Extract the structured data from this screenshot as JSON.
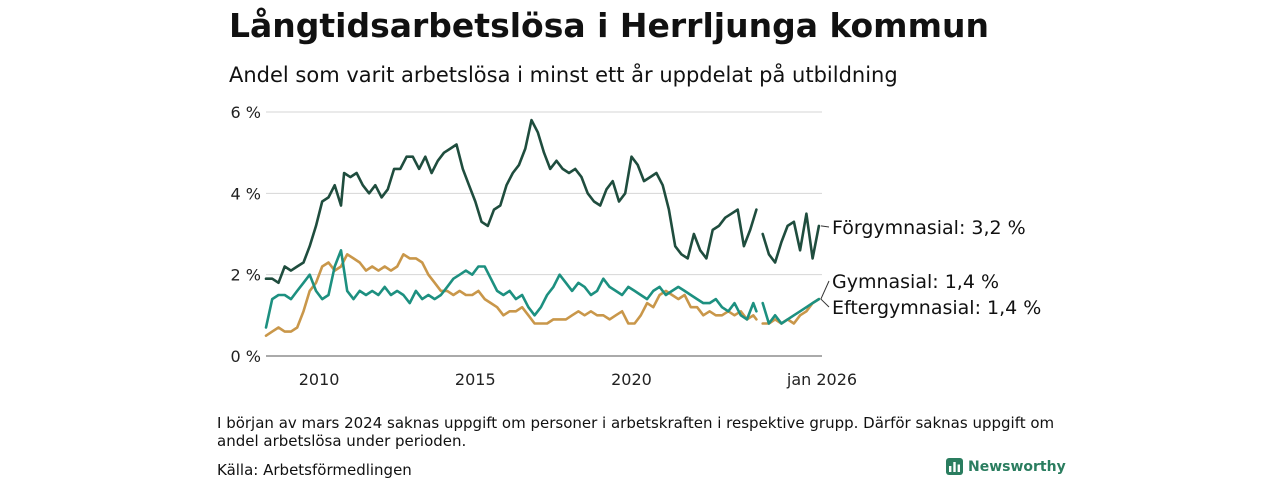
{
  "chart_data": {
    "type": "line",
    "title": "Långtidsarbetslösa i Herrljunga kommun",
    "subtitle": "Andel som varit arbetslösa i minst ett år uppdelat på utbildning",
    "ylim": [
      0,
      6
    ],
    "yticks": [
      {
        "value": 0,
        "label": "0 %"
      },
      {
        "value": 2,
        "label": "2 %"
      },
      {
        "value": 4,
        "label": "4 %"
      },
      {
        "value": 6,
        "label": "6 %"
      }
    ],
    "xlim": [
      2008.3,
      2026.1
    ],
    "xticks": [
      {
        "value": 2010,
        "label": "2010"
      },
      {
        "value": 2015,
        "label": "2015"
      },
      {
        "value": 2020,
        "label": "2020"
      },
      {
        "value": 2026.1,
        "label": "jan 2026"
      }
    ],
    "grid": true,
    "series": [
      {
        "name": "Förgymnasial",
        "end_label": "Förgymnasial: 3,2 %",
        "color": "#1f4d3e",
        "x": [
          2008.3,
          2008.5,
          2008.7,
          2008.9,
          2009.1,
          2009.3,
          2009.5,
          2009.7,
          2009.9,
          2010.1,
          2010.3,
          2010.5,
          2010.7,
          2010.8,
          2011.0,
          2011.2,
          2011.4,
          2011.6,
          2011.8,
          2012.0,
          2012.2,
          2012.4,
          2012.6,
          2012.8,
          2013.0,
          2013.2,
          2013.4,
          2013.6,
          2013.8,
          2014.0,
          2014.2,
          2014.4,
          2014.6,
          2014.8,
          2015.0,
          2015.2,
          2015.4,
          2015.6,
          2015.8,
          2016.0,
          2016.2,
          2016.4,
          2016.6,
          2016.8,
          2017.0,
          2017.2,
          2017.4,
          2017.6,
          2017.8,
          2018.0,
          2018.2,
          2018.4,
          2018.6,
          2018.8,
          2019.0,
          2019.2,
          2019.4,
          2019.6,
          2019.8,
          2020.0,
          2020.2,
          2020.4,
          2020.6,
          2020.8,
          2021.0,
          2021.2,
          2021.4,
          2021.6,
          2021.8,
          2022.0,
          2022.2,
          2022.4,
          2022.6,
          2022.8,
          2023.0,
          2023.2,
          2023.4,
          2023.6,
          2023.8,
          2024.0,
          null,
          2024.2,
          2024.4,
          2024.6,
          2024.8,
          2025.0,
          2025.2,
          2025.4,
          2025.6,
          2025.8,
          2026.0
        ],
        "values": [
          1.9,
          1.9,
          1.8,
          2.2,
          2.1,
          2.2,
          2.3,
          2.7,
          3.2,
          3.8,
          3.9,
          4.2,
          3.7,
          4.5,
          4.4,
          4.5,
          4.2,
          4.0,
          4.2,
          3.9,
          4.1,
          4.6,
          4.6,
          4.9,
          4.9,
          4.6,
          4.9,
          4.5,
          4.8,
          5.0,
          5.1,
          5.2,
          4.6,
          4.2,
          3.8,
          3.3,
          3.2,
          3.6,
          3.7,
          4.2,
          4.5,
          4.7,
          5.1,
          5.8,
          5.5,
          5.0,
          4.6,
          4.8,
          4.6,
          4.5,
          4.6,
          4.4,
          4.0,
          3.8,
          3.7,
          4.1,
          4.3,
          3.8,
          4.0,
          4.9,
          4.7,
          4.3,
          4.4,
          4.5,
          4.2,
          3.6,
          2.7,
          2.5,
          2.4,
          3.0,
          2.6,
          2.4,
          3.1,
          3.2,
          3.4,
          3.5,
          3.6,
          2.7,
          3.1,
          3.6,
          null,
          3.0,
          2.5,
          2.3,
          2.8,
          3.2,
          3.3,
          2.6,
          3.5,
          2.4,
          3.2
        ]
      },
      {
        "name": "Gymnasial",
        "end_label": "Gymnasial: 1,4 %",
        "color": "#c9974a",
        "x": [
          2008.3,
          2008.5,
          2008.7,
          2008.9,
          2009.1,
          2009.3,
          2009.5,
          2009.7,
          2009.9,
          2010.1,
          2010.3,
          2010.5,
          2010.7,
          2010.9,
          2011.1,
          2011.3,
          2011.5,
          2011.7,
          2011.9,
          2012.1,
          2012.3,
          2012.5,
          2012.7,
          2012.9,
          2013.1,
          2013.3,
          2013.5,
          2013.7,
          2013.9,
          2014.1,
          2014.3,
          2014.5,
          2014.7,
          2014.9,
          2015.1,
          2015.3,
          2015.5,
          2015.7,
          2015.9,
          2016.1,
          2016.3,
          2016.5,
          2016.7,
          2016.9,
          2017.1,
          2017.3,
          2017.5,
          2017.7,
          2017.9,
          2018.1,
          2018.3,
          2018.5,
          2018.7,
          2018.9,
          2019.1,
          2019.3,
          2019.5,
          2019.7,
          2019.9,
          2020.1,
          2020.3,
          2020.5,
          2020.7,
          2020.9,
          2021.1,
          2021.3,
          2021.5,
          2021.7,
          2021.9,
          2022.1,
          2022.3,
          2022.5,
          2022.7,
          2022.9,
          2023.1,
          2023.3,
          2023.5,
          2023.7,
          2023.9,
          2024.0,
          null,
          2024.2,
          2024.4,
          2024.6,
          2024.8,
          2025.0,
          2025.2,
          2025.4,
          2025.6,
          2025.8,
          2026.0
        ],
        "values": [
          0.5,
          0.6,
          0.7,
          0.6,
          0.6,
          0.7,
          1.1,
          1.6,
          1.8,
          2.2,
          2.3,
          2.1,
          2.2,
          2.5,
          2.4,
          2.3,
          2.1,
          2.2,
          2.1,
          2.2,
          2.1,
          2.2,
          2.5,
          2.4,
          2.4,
          2.3,
          2.0,
          1.8,
          1.6,
          1.6,
          1.5,
          1.6,
          1.5,
          1.5,
          1.6,
          1.4,
          1.3,
          1.2,
          1.0,
          1.1,
          1.1,
          1.2,
          1.0,
          0.8,
          0.8,
          0.8,
          0.9,
          0.9,
          0.9,
          1.0,
          1.1,
          1.0,
          1.1,
          1.0,
          1.0,
          0.9,
          1.0,
          1.1,
          0.8,
          0.8,
          1.0,
          1.3,
          1.2,
          1.5,
          1.6,
          1.5,
          1.4,
          1.5,
          1.2,
          1.2,
          1.0,
          1.1,
          1.0,
          1.0,
          1.1,
          1.0,
          1.1,
          0.9,
          1.0,
          0.9,
          null,
          0.8,
          0.8,
          0.9,
          0.8,
          0.9,
          0.8,
          1.0,
          1.1,
          1.3,
          1.4
        ]
      },
      {
        "name": "Eftergymnasial",
        "end_label": "Eftergymnasial: 1,4 %",
        "color": "#1d9080",
        "x": [
          2008.3,
          2008.5,
          2008.7,
          2008.9,
          2009.1,
          2009.3,
          2009.5,
          2009.7,
          2009.9,
          2010.1,
          2010.3,
          2010.5,
          2010.7,
          2010.9,
          2011.1,
          2011.3,
          2011.5,
          2011.7,
          2011.9,
          2012.1,
          2012.3,
          2012.5,
          2012.7,
          2012.9,
          2013.1,
          2013.3,
          2013.5,
          2013.7,
          2013.9,
          2014.1,
          2014.3,
          2014.5,
          2014.7,
          2014.9,
          2015.1,
          2015.3,
          2015.5,
          2015.7,
          2015.9,
          2016.1,
          2016.3,
          2016.5,
          2016.7,
          2016.9,
          2017.1,
          2017.3,
          2017.5,
          2017.7,
          2017.9,
          2018.1,
          2018.3,
          2018.5,
          2018.7,
          2018.9,
          2019.1,
          2019.3,
          2019.5,
          2019.7,
          2019.9,
          2020.1,
          2020.3,
          2020.5,
          2020.7,
          2020.9,
          2021.1,
          2021.3,
          2021.5,
          2021.7,
          2021.9,
          2022.1,
          2022.3,
          2022.5,
          2022.7,
          2022.9,
          2023.1,
          2023.3,
          2023.5,
          2023.7,
          2023.9,
          2024.0,
          null,
          2024.2,
          2024.4,
          2024.6,
          2024.8,
          2025.0,
          2025.2,
          2025.4,
          2025.6,
          2025.8,
          2026.0
        ],
        "values": [
          0.7,
          1.4,
          1.5,
          1.5,
          1.4,
          1.6,
          1.8,
          2.0,
          1.6,
          1.4,
          1.5,
          2.2,
          2.6,
          1.6,
          1.4,
          1.6,
          1.5,
          1.6,
          1.5,
          1.7,
          1.5,
          1.6,
          1.5,
          1.3,
          1.6,
          1.4,
          1.5,
          1.4,
          1.5,
          1.7,
          1.9,
          2.0,
          2.1,
          2.0,
          2.2,
          2.2,
          1.9,
          1.6,
          1.5,
          1.6,
          1.4,
          1.5,
          1.2,
          1.0,
          1.2,
          1.5,
          1.7,
          2.0,
          1.8,
          1.6,
          1.8,
          1.7,
          1.5,
          1.6,
          1.9,
          1.7,
          1.6,
          1.5,
          1.7,
          1.6,
          1.5,
          1.4,
          1.6,
          1.7,
          1.5,
          1.6,
          1.7,
          1.6,
          1.5,
          1.4,
          1.3,
          1.3,
          1.4,
          1.2,
          1.1,
          1.3,
          1.0,
          0.9,
          1.3,
          1.1,
          null,
          1.3,
          0.8,
          1.0,
          0.8,
          0.9,
          1.0,
          1.1,
          1.2,
          1.3,
          1.4
        ]
      }
    ]
  },
  "footnote": "I början av mars 2024 saknas uppgift om personer i arbetskraften i respektive grupp. Därför saknas uppgift om andel arbetslösa under perioden.",
  "source": "Källa: Arbetsförmedlingen",
  "brand": {
    "name": "Newsworthy",
    "icon": "bar-chart-icon",
    "color": "#2a7d5f"
  }
}
